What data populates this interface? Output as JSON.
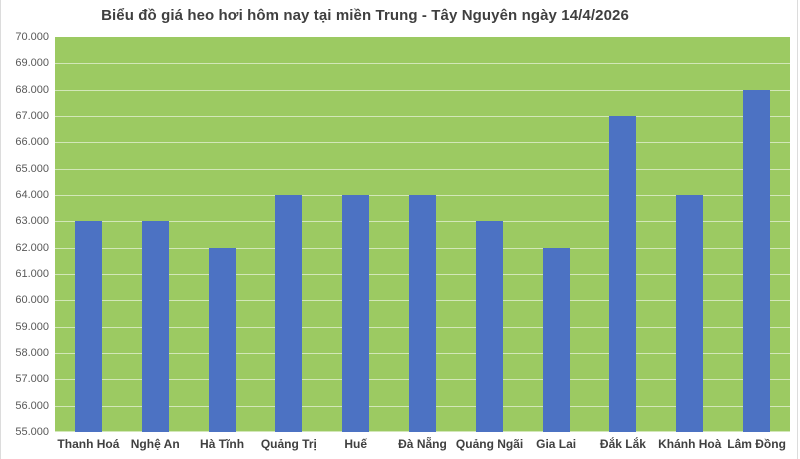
{
  "chart_data": {
    "type": "bar",
    "title": "Biểu đồ giá heo hơi hôm nay tại miền Trung - Tây Nguyên ngày 14/4/2026",
    "categories": [
      "Thanh Hoá",
      "Nghệ An",
      "Hà Tĩnh",
      "Quảng Trị",
      "Huế",
      "Đà Nẵng",
      "Quảng Ngãi",
      "Gia Lai",
      "Đắk Lắk",
      "Khánh Hoà",
      "Lâm Đồng"
    ],
    "values": [
      63000,
      63000,
      62000,
      64000,
      64000,
      64000,
      63000,
      62000,
      67000,
      64000,
      68000
    ],
    "xlabel": "",
    "ylabel": "",
    "ylim": [
      55000,
      70000
    ],
    "ytick_step": 1000,
    "yticks": [
      {
        "label": "70.000",
        "value": 70000
      },
      {
        "label": "69.000",
        "value": 69000
      },
      {
        "label": "68.000",
        "value": 68000
      },
      {
        "label": "67.000",
        "value": 67000
      },
      {
        "label": "66.000",
        "value": 66000
      },
      {
        "label": "65.000",
        "value": 65000
      },
      {
        "label": "64.000",
        "value": 64000
      },
      {
        "label": "63.000",
        "value": 63000
      },
      {
        "label": "62.000",
        "value": 62000
      },
      {
        "label": "61.000",
        "value": 61000
      },
      {
        "label": "60.000",
        "value": 60000
      },
      {
        "label": "59.000",
        "value": 59000
      },
      {
        "label": "58.000",
        "value": 58000
      },
      {
        "label": "57.000",
        "value": 57000
      },
      {
        "label": "56.000",
        "value": 56000
      },
      {
        "label": "55.000",
        "value": 55000
      }
    ],
    "grid": true,
    "legend": "none",
    "colors": {
      "bar": "#4C72C3",
      "plot_background": "#9CCA62",
      "gridline": "#E4EAD8",
      "title_text": "#3F3F3F",
      "axis_tick_text": "#595959",
      "category_text": "#404040",
      "page_background": "#FFFFFF"
    }
  }
}
